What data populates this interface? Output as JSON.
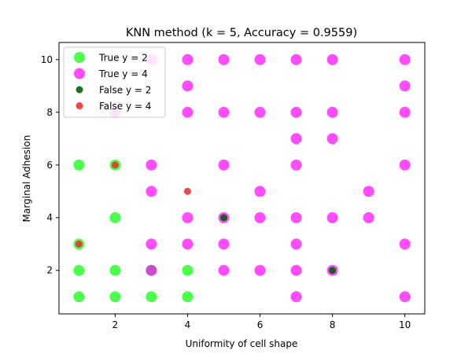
{
  "chart_data": {
    "type": "scatter",
    "title": "KNN method (k = 5, Accuracy = 0.9559)",
    "xlabel": "Uniformity of cell shape",
    "ylabel": "Marginal Adhesion",
    "xlim": [
      0.45,
      10.55
    ],
    "ylim": [
      0.35,
      10.65
    ],
    "xticks": [
      2,
      4,
      6,
      8,
      10
    ],
    "yticks": [
      2,
      4,
      6,
      8,
      10
    ],
    "grid": false,
    "legend": "top-left",
    "series": [
      {
        "name": "True y = 2",
        "color": "#00ff00",
        "alpha": 0.7,
        "size": "large",
        "points": [
          [
            1,
            1
          ],
          [
            1,
            2
          ],
          [
            1,
            3
          ],
          [
            1,
            6
          ],
          [
            2,
            1
          ],
          [
            2,
            2
          ],
          [
            2,
            4
          ],
          [
            2,
            6
          ],
          [
            3,
            1
          ],
          [
            3,
            2
          ],
          [
            4,
            1
          ],
          [
            4,
            2
          ]
        ]
      },
      {
        "name": "True y = 4",
        "color": "#ff00ff",
        "alpha": 0.7,
        "size": "large",
        "points": [
          [
            2,
            8
          ],
          [
            3,
            10
          ],
          [
            3,
            6
          ],
          [
            3,
            5
          ],
          [
            3,
            3
          ],
          [
            3,
            2
          ],
          [
            4,
            10
          ],
          [
            4,
            9
          ],
          [
            4,
            8
          ],
          [
            4,
            4
          ],
          [
            4,
            3
          ],
          [
            5,
            10
          ],
          [
            5,
            8
          ],
          [
            5,
            6
          ],
          [
            5,
            4
          ],
          [
            5,
            3
          ],
          [
            5,
            2
          ],
          [
            6,
            10
          ],
          [
            6,
            8
          ],
          [
            6,
            5
          ],
          [
            6,
            4
          ],
          [
            6,
            2
          ],
          [
            7,
            10
          ],
          [
            7,
            8
          ],
          [
            7,
            7
          ],
          [
            7,
            6
          ],
          [
            7,
            4
          ],
          [
            7,
            3
          ],
          [
            7,
            2
          ],
          [
            7,
            1
          ],
          [
            8,
            10
          ],
          [
            8,
            8
          ],
          [
            8,
            7
          ],
          [
            8,
            4
          ],
          [
            8,
            2
          ],
          [
            9,
            5
          ],
          [
            9,
            4
          ],
          [
            10,
            10
          ],
          [
            10,
            9
          ],
          [
            10,
            8
          ],
          [
            10,
            6
          ],
          [
            10,
            3
          ],
          [
            10,
            1
          ]
        ]
      },
      {
        "name": "False y = 2",
        "color": "#006400",
        "alpha": 0.9,
        "size": "small",
        "points": [
          [
            5,
            4
          ],
          [
            8,
            2
          ]
        ]
      },
      {
        "name": "False y = 4",
        "color": "#ee3333",
        "alpha": 0.9,
        "size": "small",
        "points": [
          [
            1,
            3
          ],
          [
            2,
            6
          ],
          [
            4,
            5
          ]
        ]
      }
    ]
  }
}
